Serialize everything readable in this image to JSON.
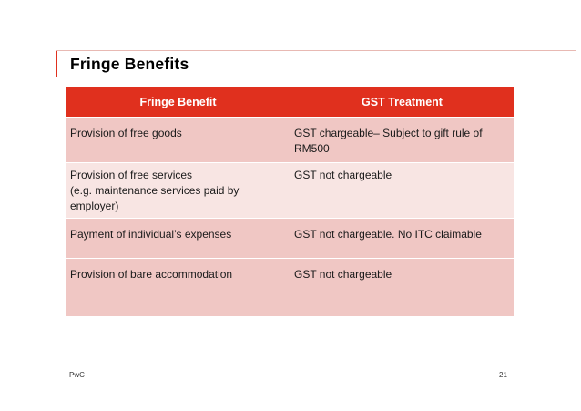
{
  "title": "Fringe Benefits",
  "table": {
    "headers": [
      "Fringe Benefit",
      "GST Treatment"
    ],
    "rows": [
      {
        "benefit": [
          "Provision of free goods"
        ],
        "treatment": [
          "GST chargeable– Subject to gift rule of",
          "RM500"
        ]
      },
      {
        "benefit": [
          "Provision of free services",
          "(e.g. maintenance services paid by",
          "employer)"
        ],
        "treatment": [
          "GST not chargeable"
        ]
      },
      {
        "benefit": [
          "Payment of individual’s expenses"
        ],
        "treatment": [
          "GST not chargeable. No ITC claimable"
        ]
      },
      {
        "benefit": [
          "Provision of bare accommodation"
        ],
        "treatment": [
          "GST not chargeable"
        ]
      }
    ]
  },
  "footer": {
    "left": "PwC",
    "page_number": "21"
  },
  "colors": {
    "header_bg": "#e0301e",
    "row_dark": "#f0c7c4",
    "row_light": "#f8e5e3",
    "accent_rule": "#e0301e"
  }
}
